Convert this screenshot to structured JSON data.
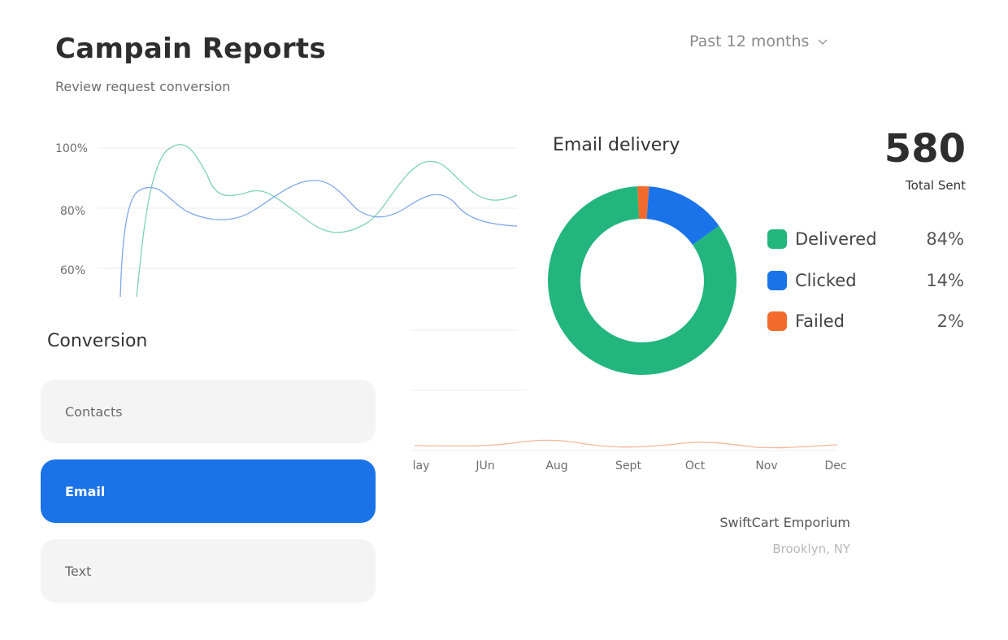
{
  "header": {
    "title": "Campain Reports",
    "subtitle": "Review request conversion",
    "period": "Past 12 months"
  },
  "line_chart": {
    "y_ticks": [
      "100%",
      "80%",
      "60%"
    ],
    "months": [
      "lay",
      "JUn",
      "Aug",
      "Sept",
      "Oct",
      "Nov",
      "Dec"
    ],
    "colors": {
      "green": "#7fd4b0",
      "blue": "#7ea7ea",
      "orange": "#f6b79a",
      "grid": "#ececec"
    }
  },
  "store": {
    "name": "SwiftCart Emporium",
    "location": "Brooklyn, NY"
  },
  "conversion": {
    "label": "Conversion",
    "options": [
      {
        "label": "Contacts",
        "active": false
      },
      {
        "label": "Email",
        "active": true
      },
      {
        "label": "Text",
        "active": false
      }
    ]
  },
  "email_delivery": {
    "label": "Email delivery",
    "total": "580",
    "total_label": "Total Sent",
    "legend": [
      {
        "name": "Delivered",
        "pct": "84%",
        "color": "#23b57e"
      },
      {
        "name": "Clicked",
        "pct": "14%",
        "color": "#1a73e8"
      },
      {
        "name": "Failed",
        "pct": "2%",
        "color": "#f26b2d"
      }
    ]
  },
  "chart_data": {
    "type": "pie",
    "categories": [
      "Delivered",
      "Clicked",
      "Failed"
    ],
    "values": [
      84,
      14,
      2
    ],
    "title": "Email delivery"
  }
}
